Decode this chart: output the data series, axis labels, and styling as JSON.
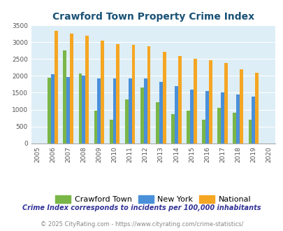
{
  "title": "Crawford Town Property Crime Index",
  "years": [
    2005,
    2006,
    2007,
    2008,
    2009,
    2010,
    2011,
    2012,
    2013,
    2014,
    2015,
    2016,
    2017,
    2018,
    2019,
    2020
  ],
  "crawford_town": [
    null,
    1950,
    2750,
    2075,
    975,
    700,
    1300,
    1650,
    1225,
    875,
    975,
    700,
    1060,
    900,
    700,
    null
  ],
  "new_york": [
    null,
    2050,
    1975,
    2000,
    1925,
    1925,
    1925,
    1925,
    1825,
    1700,
    1600,
    1550,
    1500,
    1450,
    1375,
    null
  ],
  "national": [
    null,
    3350,
    3250,
    3200,
    3050,
    2950,
    2925,
    2875,
    2725,
    2600,
    2500,
    2475,
    2375,
    2200,
    2100,
    null
  ],
  "crawford_color": "#7ab648",
  "newyork_color": "#4a90d9",
  "national_color": "#f5a623",
  "bg_color": "#ddeef6",
  "title_color": "#1a5276",
  "footnote1": "Crime Index corresponds to incidents per 100,000 inhabitants",
  "footnote2": "© 2025 CityRating.com - https://www.cityrating.com/crime-statistics/",
  "legend_labels": [
    "Crawford Town",
    "New York",
    "National"
  ],
  "ylim": [
    0,
    3500
  ],
  "yticks": [
    0,
    500,
    1000,
    1500,
    2000,
    2500,
    3000,
    3500
  ]
}
